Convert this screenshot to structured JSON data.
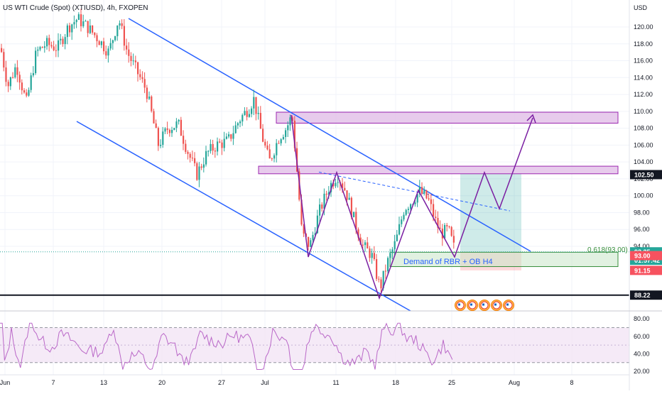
{
  "header": {
    "symbol_title": "US WTI Crude (Spot) (XTIUSD), 4h, FXOPEN"
  },
  "chart_data": {
    "type": "candlestick",
    "title": "US WTI Crude (Spot) (XTIUSD), 4h, FXOPEN",
    "currency_label": "USD",
    "y_ticks": [
      "120.00",
      "118.00",
      "116.00",
      "114.00",
      "112.00",
      "110.00",
      "108.00",
      "106.00",
      "104.00",
      "102.00",
      "100.00",
      "98.00",
      "96.00",
      "94.00"
    ],
    "ylim": [
      86.5,
      122.5
    ],
    "x_ticks": [
      "Jun",
      "7",
      "13",
      "20",
      "27",
      "Jul",
      "11",
      "18",
      "25",
      "Aug",
      "8"
    ],
    "price_badges": [
      {
        "label": "102.50",
        "value": 102.5,
        "color": "#131722"
      },
      {
        "label": "93.35",
        "value": 93.35,
        "color": "#26a69a"
      },
      {
        "label": "01:57:42",
        "value": 92.35,
        "color": "#26a69a"
      },
      {
        "label": "93.00",
        "value": 92.9,
        "color": "#f7525f"
      },
      {
        "label": "91.15",
        "value": 91.15,
        "color": "#f7525f"
      },
      {
        "label": "88.22",
        "value": 88.22,
        "color": "#131722"
      }
    ],
    "fib_label": "0.618(93.00)",
    "zones": [
      {
        "name": "supply-top",
        "low": 108.6,
        "high": 109.9
      },
      {
        "name": "supply-mid",
        "low": 102.6,
        "high": 103.5
      },
      {
        "name": "demand",
        "low": 91.6,
        "high": 93.3,
        "label": "Demand of RBR + OB H4"
      }
    ],
    "support_level": 88.22,
    "current_price": 93.35,
    "rsi": {
      "y_ticks": [
        "80.00",
        "60.00",
        "40.00",
        "20.00"
      ],
      "ylim": [
        15,
        88
      ],
      "upper": 70,
      "lower": 30
    },
    "colors": {
      "up": "#26a69a",
      "down": "#ef5350",
      "channel": "#2962ff",
      "projection": "#7b1fa2",
      "zone_fill": "#e1bee7",
      "zone_border": "#9c27b0",
      "demand_border": "#388e3c",
      "rsi_line": "#ba68c8"
    }
  }
}
